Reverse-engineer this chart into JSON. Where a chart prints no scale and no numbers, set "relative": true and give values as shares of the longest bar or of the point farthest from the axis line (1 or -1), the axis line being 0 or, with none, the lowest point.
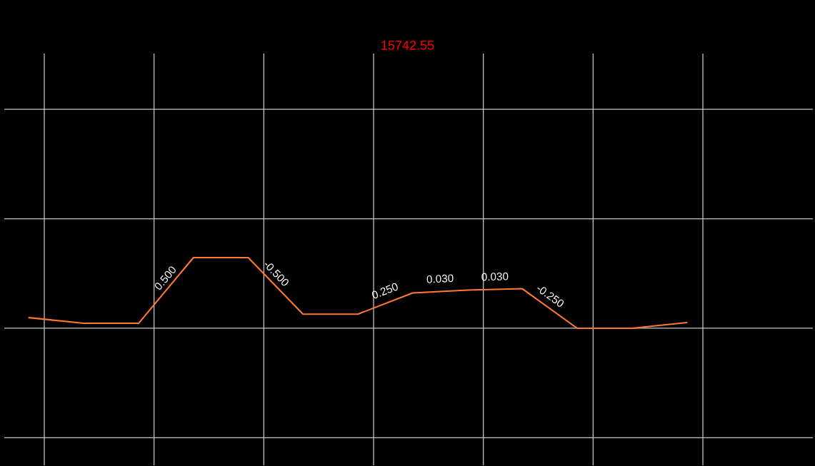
{
  "chart_data": {
    "type": "line",
    "title": "15742.55",
    "relative": true,
    "categories": [
      null,
      null,
      null,
      null,
      null,
      null,
      null,
      null,
      null,
      null,
      null,
      null,
      null
    ],
    "series": [
      {
        "color": "#ff7a2e",
        "values": [
          0.15,
          0.07,
          0.07,
          1,
          1,
          0.2,
          0.2,
          0.5,
          0.54,
          0.56,
          0,
          0,
          0.08
        ],
        "name": null
      }
    ],
    "annotations": [
      "0.500",
      "-0.500",
      "0.250",
      "0.030",
      "0.030",
      "-0.250"
    ],
    "grid": true,
    "line_style": "solid"
  }
}
